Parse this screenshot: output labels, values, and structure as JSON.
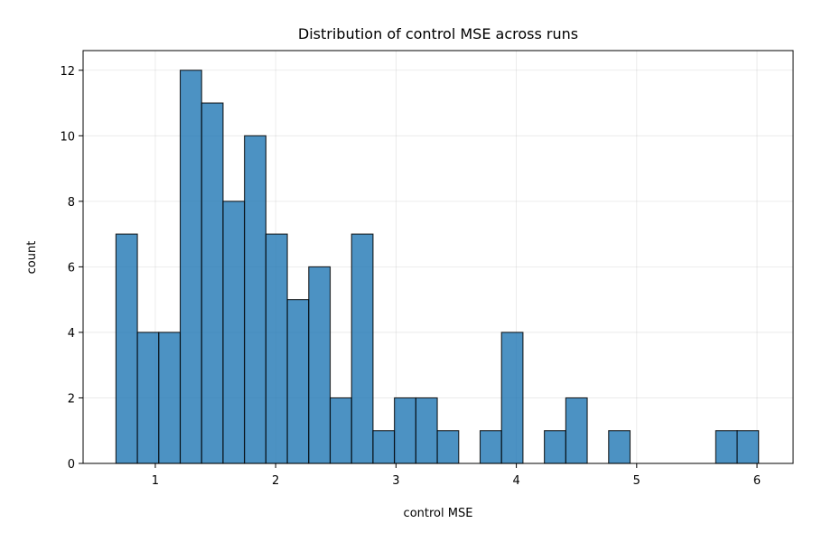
{
  "chart_data": {
    "type": "bar",
    "title": "Distribution of control MSE across runs",
    "xlabel": "control MSE",
    "ylabel": "count",
    "bin_edges": [
      0.673,
      0.851,
      1.029,
      1.207,
      1.385,
      1.563,
      1.741,
      1.919,
      2.097,
      2.275,
      2.453,
      2.631,
      2.809,
      2.987,
      3.165,
      3.343,
      3.521,
      3.699,
      3.877,
      4.055,
      4.233,
      4.411,
      4.589,
      4.767,
      4.945,
      5.123,
      5.301,
      5.479,
      5.657,
      5.835,
      6.013
    ],
    "values": [
      7,
      4,
      4,
      12,
      11,
      8,
      10,
      7,
      5,
      6,
      2,
      7,
      1,
      2,
      2,
      1,
      0,
      1,
      4,
      0,
      1,
      2,
      0,
      1,
      0,
      0,
      0,
      0,
      1,
      1
    ],
    "xlim": [
      0.4,
      6.3
    ],
    "ylim": [
      0,
      12.6
    ],
    "xticks": [
      1,
      2,
      3,
      4,
      5,
      6
    ],
    "yticks": [
      0,
      2,
      4,
      6,
      8,
      10,
      12
    ],
    "grid": true,
    "bar_color": "#1f77b4"
  }
}
